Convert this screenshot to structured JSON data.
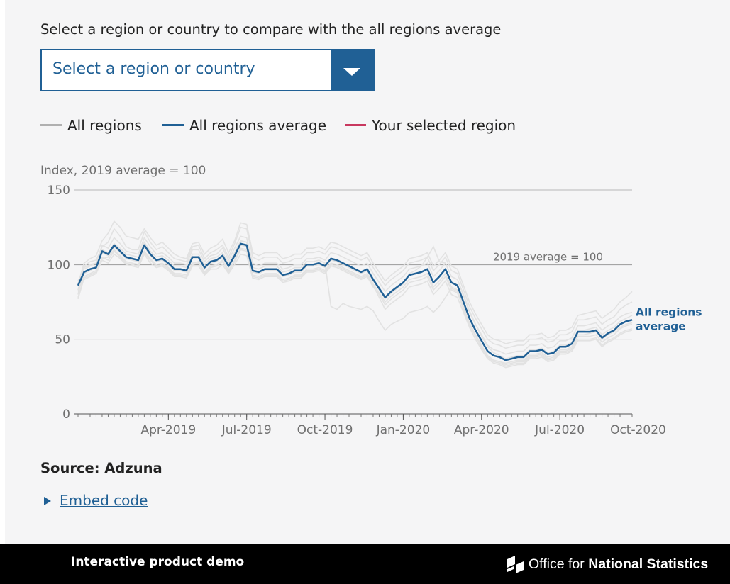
{
  "prompt": "Select a region or country to compare with the all regions average",
  "select": {
    "placeholder": "Select a region or country"
  },
  "legend": [
    {
      "label": "All regions",
      "color": "#b0b0b0"
    },
    {
      "label": "All regions average",
      "color": "#206095"
    },
    {
      "label": "Your selected region",
      "color": "#c8385f"
    }
  ],
  "source": "Source: Adzuna",
  "embed_label": "Embed code",
  "footer": {
    "left_text": "Interactive product demo",
    "brand_light": "Office for",
    "brand_bold": "National Statistics"
  },
  "chart_data": {
    "type": "line",
    "ylabel": "Index, 2019 average = 100",
    "ylim": [
      0,
      150
    ],
    "yticks": [
      0,
      50,
      100,
      150
    ],
    "xticks": [
      {
        "label": "Apr-2019",
        "week": 15
      },
      {
        "label": "Jul-2019",
        "week": 28
      },
      {
        "label": "Oct-2019",
        "week": 41
      },
      {
        "label": "Jan-2020",
        "week": 54
      },
      {
        "label": "Apr-2020",
        "week": 67
      },
      {
        "label": "Jul-2020",
        "week": 80
      },
      {
        "label": "Oct-2020",
        "week": 93
      }
    ],
    "reference_line": {
      "value": 100,
      "label": "2019 average = 100"
    },
    "average_label": [
      "All regions",
      "average"
    ],
    "colors": {
      "regions": "#e2e2e2",
      "average": "#206095",
      "grid": "#b8b8b8",
      "reference": "#a5a5a5"
    },
    "average": [
      86,
      95,
      97,
      98,
      109,
      107,
      113,
      109,
      105,
      104,
      103,
      113,
      107,
      103,
      104,
      101,
      97,
      97,
      96,
      105,
      105,
      98,
      102,
      103,
      106,
      99,
      106,
      114,
      113,
      96,
      95,
      97,
      97,
      97,
      93,
      94,
      96,
      96,
      100,
      100,
      101,
      99,
      104,
      103,
      101,
      99,
      97,
      95,
      97,
      90,
      84,
      78,
      82,
      85,
      88,
      93,
      94,
      95,
      97,
      88,
      92,
      97,
      88,
      86,
      75,
      64,
      56,
      49,
      42,
      39,
      38,
      36,
      37,
      38,
      38,
      42,
      42,
      43,
      40,
      41,
      45,
      45,
      47,
      55,
      55,
      55,
      56,
      51,
      54,
      56,
      60,
      62,
      63
    ],
    "regions": [
      [
        78,
        92,
        94,
        96,
        104,
        105,
        110,
        106,
        102,
        101,
        100,
        109,
        104,
        100,
        101,
        98,
        94,
        94,
        93,
        101,
        102,
        95,
        99,
        100,
        103,
        96,
        103,
        111,
        110,
        93,
        92,
        94,
        94,
        94,
        90,
        91,
        93,
        93,
        97,
        97,
        98,
        96,
        101,
        100,
        98,
        96,
        94,
        92,
        94,
        87,
        81,
        75,
        79,
        82,
        85,
        90,
        91,
        92,
        94,
        85,
        89,
        94,
        85,
        83,
        72,
        61,
        53,
        46,
        39,
        36,
        35,
        33,
        34,
        35,
        35,
        39,
        39,
        40,
        37,
        38,
        42,
        42,
        44,
        52,
        52,
        52,
        53,
        48,
        51,
        53,
        57,
        59,
        60
      ],
      [
        80,
        98,
        100,
        101,
        113,
        111,
        118,
        114,
        109,
        108,
        107,
        118,
        112,
        107,
        108,
        105,
        101,
        101,
        100,
        110,
        110,
        102,
        106,
        107,
        111,
        103,
        111,
        119,
        118,
        101,
        99,
        101,
        101,
        101,
        97,
        98,
        100,
        100,
        104,
        104,
        105,
        103,
        108,
        107,
        105,
        103,
        101,
        99,
        101,
        94,
        88,
        82,
        86,
        89,
        92,
        97,
        98,
        99,
        101,
        92,
        96,
        101,
        92,
        90,
        79,
        68,
        60,
        53,
        46,
        43,
        42,
        40,
        41,
        42,
        42,
        46,
        46,
        47,
        44,
        45,
        49,
        49,
        51,
        59,
        59,
        60,
        61,
        56,
        59,
        61,
        65,
        67,
        68
      ],
      [
        83,
        99,
        102,
        103,
        112,
        115,
        124,
        119,
        112,
        110,
        110,
        122,
        115,
        110,
        112,
        108,
        104,
        103,
        102,
        112,
        113,
        104,
        108,
        110,
        113,
        105,
        114,
        125,
        124,
        105,
        103,
        105,
        105,
        105,
        101,
        102,
        104,
        104,
        108,
        108,
        109,
        107,
        112,
        111,
        109,
        107,
        105,
        103,
        105,
        98,
        92,
        86,
        90,
        93,
        96,
        101,
        102,
        103,
        105,
        96,
        100,
        105,
        96,
        94,
        83,
        72,
        64,
        57,
        50,
        47,
        46,
        44,
        45,
        46,
        46,
        50,
        50,
        51,
        48,
        49,
        53,
        53,
        55,
        63,
        63,
        64,
        65,
        60,
        63,
        65,
        70,
        73,
        75
      ],
      [
        87,
        101,
        104,
        106,
        116,
        121,
        129,
        125,
        119,
        118,
        117,
        124,
        118,
        113,
        115,
        111,
        107,
        105,
        104,
        114,
        115,
        107,
        111,
        113,
        117,
        108,
        116,
        128,
        127,
        108,
        106,
        108,
        108,
        108,
        104,
        105,
        107,
        107,
        111,
        111,
        112,
        110,
        115,
        114,
        112,
        110,
        108,
        106,
        108,
        101,
        95,
        89,
        93,
        96,
        99,
        104,
        105,
        106,
        108,
        99,
        103,
        108,
        99,
        97,
        86,
        75,
        67,
        60,
        53,
        50,
        49,
        47,
        48,
        49,
        49,
        53,
        53,
        54,
        51,
        52,
        56,
        56,
        58,
        66,
        67,
        68,
        69,
        64,
        67,
        70,
        75,
        78,
        82
      ],
      [
        84,
        90,
        92,
        94,
        103,
        101,
        107,
        104,
        100,
        99,
        98,
        107,
        101,
        98,
        99,
        96,
        92,
        92,
        91,
        99,
        99,
        93,
        97,
        97,
        100,
        94,
        100,
        107,
        106,
        91,
        90,
        92,
        92,
        92,
        88,
        89,
        91,
        91,
        95,
        95,
        96,
        94,
        99,
        98,
        96,
        94,
        92,
        90,
        92,
        85,
        80,
        73,
        77,
        80,
        83,
        88,
        89,
        90,
        92,
        83,
        87,
        92,
        83,
        81,
        71,
        60,
        52,
        45,
        38,
        35,
        34,
        32,
        33,
        34,
        34,
        38,
        38,
        39,
        36,
        37,
        41,
        41,
        43,
        50,
        50,
        50,
        51,
        46,
        49,
        51,
        54,
        56,
        57
      ],
      [
        89,
        97,
        99,
        101,
        110,
        108,
        114,
        111,
        107,
        106,
        105,
        115,
        109,
        105,
        106,
        103,
        99,
        99,
        98,
        107,
        107,
        100,
        104,
        105,
        108,
        101,
        108,
        116,
        115,
        98,
        97,
        99,
        99,
        99,
        95,
        96,
        98,
        98,
        102,
        102,
        103,
        101,
        72,
        70,
        74,
        72,
        71,
        70,
        72,
        69,
        62,
        56,
        60,
        62,
        64,
        68,
        69,
        70,
        72,
        68,
        72,
        78,
        84,
        82,
        70,
        58,
        50,
        44,
        39,
        36,
        35,
        34,
        35,
        36,
        36,
        40,
        40,
        41,
        38,
        39,
        43,
        43,
        45,
        53,
        53,
        54,
        55,
        50,
        53,
        55,
        58,
        60,
        61
      ],
      [
        82,
        94,
        96,
        98,
        108,
        106,
        112,
        108,
        104,
        103,
        102,
        112,
        106,
        102,
        103,
        100,
        96,
        96,
        95,
        104,
        104,
        97,
        101,
        102,
        105,
        98,
        105,
        113,
        112,
        95,
        94,
        96,
        96,
        96,
        92,
        93,
        95,
        95,
        99,
        99,
        100,
        98,
        103,
        102,
        100,
        98,
        96,
        94,
        96,
        89,
        83,
        77,
        81,
        84,
        87,
        94,
        96,
        99,
        105,
        112,
        102,
        101,
        92,
        90,
        80,
        69,
        60,
        52,
        45,
        41,
        39,
        37,
        38,
        39,
        39,
        43,
        43,
        44,
        41,
        42,
        46,
        46,
        48,
        56,
        56,
        57,
        58,
        53,
        56,
        58,
        62,
        64,
        66
      ],
      [
        77,
        91,
        93,
        95,
        105,
        103,
        109,
        105,
        101,
        100,
        99,
        108,
        103,
        99,
        100,
        97,
        93,
        93,
        92,
        100,
        101,
        94,
        98,
        99,
        102,
        95,
        102,
        110,
        109,
        92,
        91,
        93,
        93,
        93,
        89,
        90,
        92,
        92,
        96,
        96,
        97,
        95,
        100,
        99,
        97,
        95,
        93,
        91,
        93,
        86,
        78,
        70,
        74,
        77,
        80,
        85,
        86,
        87,
        89,
        80,
        84,
        89,
        80,
        78,
        68,
        58,
        50,
        43,
        37,
        34,
        33,
        31,
        32,
        33,
        33,
        37,
        37,
        38,
        35,
        36,
        40,
        40,
        42,
        49,
        49,
        49,
        50,
        45,
        48,
        50,
        53,
        55,
        56
      ]
    ]
  }
}
